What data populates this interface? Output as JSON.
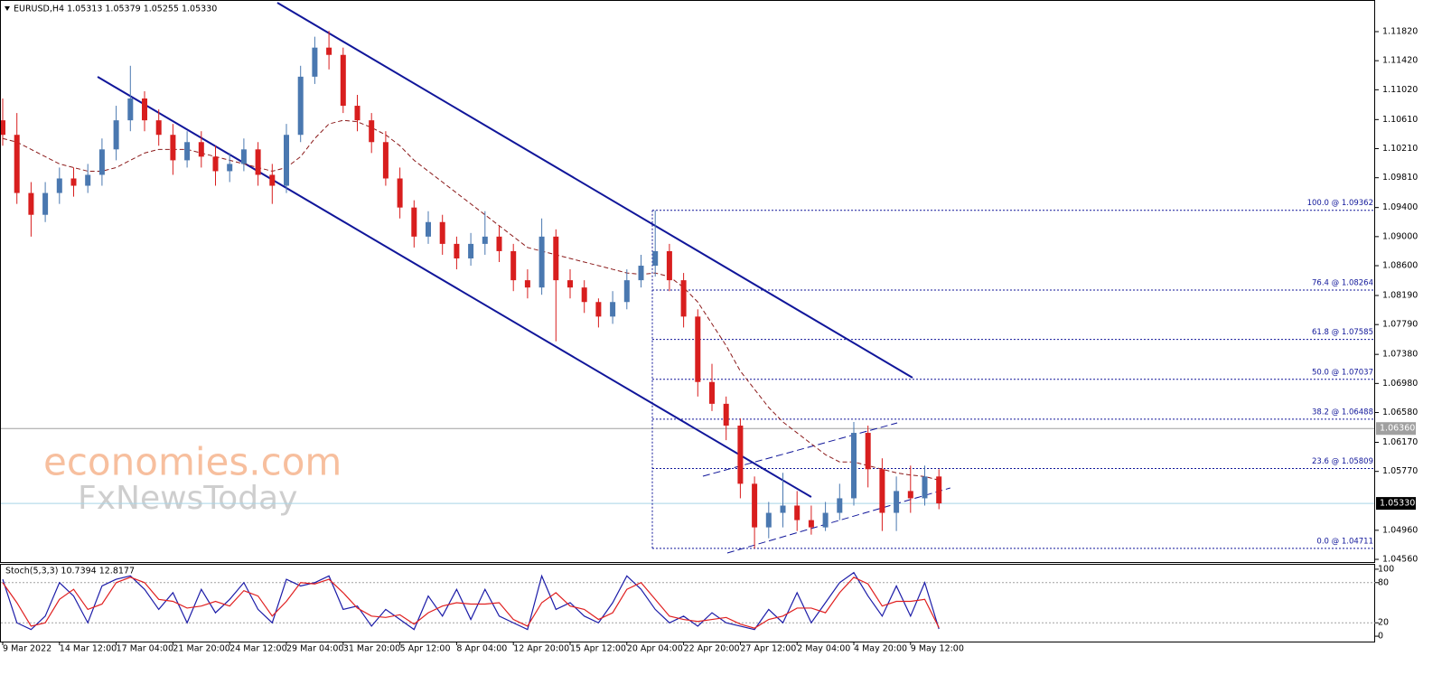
{
  "chart_data": [
    {
      "type": "candlestick",
      "symbol_info": "EURUSD,H4  1.05313 1.05379 1.05255 1.05330",
      "categories": [
        "9 Mar 2022",
        null,
        null,
        null,
        "14 Mar 12:00",
        null,
        null,
        null,
        "17 Mar 04:00",
        null,
        null,
        null,
        "21 Mar 20:00",
        null,
        null,
        null,
        "24 Mar 12:00",
        null,
        null,
        null,
        "29 Mar 04:00",
        null,
        null,
        null,
        "31 Mar 20:00",
        null,
        null,
        null,
        "5 Apr 12:00",
        null,
        null,
        null,
        "8 Apr 04:00",
        null,
        null,
        null,
        "12 Apr 20:00",
        null,
        null,
        null,
        "15 Apr 12:00",
        null,
        null,
        null,
        "20 Apr 04:00",
        null,
        null,
        null,
        "22 Apr 20:00",
        null,
        null,
        null,
        "27 Apr 12:00",
        null,
        null,
        null,
        "2 May 04:00",
        null,
        null,
        null,
        "4 May 20:00",
        null,
        null,
        null,
        "9 May 12:00",
        null,
        null
      ],
      "open": [
        1.106,
        1.104,
        1.096,
        1.093,
        1.096,
        1.098,
        1.097,
        1.0985,
        1.102,
        1.106,
        1.109,
        1.106,
        1.104,
        1.1005,
        1.103,
        1.101,
        1.099,
        1.1,
        1.102,
        1.0985,
        1.097,
        1.104,
        1.112,
        1.116,
        1.115,
        1.108,
        1.106,
        1.103,
        1.098,
        1.094,
        1.09,
        1.092,
        1.089,
        1.087,
        1.089,
        1.09,
        1.088,
        1.084,
        1.083,
        1.09,
        1.084,
        1.083,
        1.081,
        1.079,
        1.081,
        1.084,
        1.086,
        1.088,
        1.084,
        1.079,
        1.07,
        1.067,
        1.064,
        1.056,
        1.05,
        1.052,
        1.053,
        1.051,
        1.05,
        1.052,
        1.054,
        1.063,
        1.058,
        1.052,
        1.055,
        1.054,
        1.057
      ],
      "high": [
        1.109,
        1.107,
        1.0975,
        1.0975,
        1.0995,
        1.0995,
        1.1,
        1.1035,
        1.108,
        1.1135,
        1.11,
        1.1075,
        1.1055,
        1.1045,
        1.1045,
        1.1025,
        1.1015,
        1.1035,
        1.103,
        1.1,
        1.1055,
        1.1135,
        1.1175,
        1.1183,
        1.116,
        1.1095,
        1.107,
        1.1045,
        1.0995,
        1.095,
        1.0935,
        1.093,
        1.09,
        1.0905,
        1.0935,
        1.0915,
        1.089,
        1.0855,
        1.0925,
        1.091,
        1.0855,
        1.084,
        1.0815,
        1.0825,
        1.0855,
        1.0875,
        1.0936,
        1.089,
        1.085,
        1.08,
        1.0725,
        1.068,
        1.065,
        1.057,
        1.0535,
        1.0575,
        1.055,
        1.053,
        1.0535,
        1.056,
        1.0645,
        1.064,
        1.0595,
        1.057,
        1.0585,
        1.0585,
        1.058
      ],
      "low": [
        1.1025,
        1.0945,
        1.09,
        1.092,
        1.0945,
        1.0955,
        1.096,
        1.097,
        1.1005,
        1.1045,
        1.1045,
        1.1025,
        1.0985,
        1.0995,
        1.0995,
        1.097,
        1.0975,
        1.099,
        1.097,
        1.0945,
        1.096,
        1.103,
        1.111,
        1.113,
        1.107,
        1.1045,
        1.1015,
        1.097,
        1.0925,
        1.0885,
        1.089,
        1.0875,
        1.0855,
        1.086,
        1.0875,
        1.0865,
        1.0825,
        1.0815,
        1.082,
        1.0756,
        1.0815,
        1.0795,
        1.0775,
        1.078,
        1.08,
        1.083,
        1.0845,
        1.0825,
        1.0775,
        1.068,
        1.066,
        1.062,
        1.054,
        1.0471,
        1.0485,
        1.05,
        1.0495,
        1.049,
        1.0495,
        1.051,
        1.053,
        1.0555,
        1.0495,
        1.0495,
        1.052,
        1.053,
        1.0525
      ],
      "close": [
        1.104,
        1.096,
        1.093,
        1.096,
        1.098,
        1.097,
        1.0985,
        1.102,
        1.106,
        1.109,
        1.106,
        1.104,
        1.1005,
        1.103,
        1.101,
        1.099,
        1.1,
        1.102,
        1.0985,
        1.097,
        1.104,
        1.112,
        1.116,
        1.115,
        1.108,
        1.106,
        1.103,
        1.098,
        1.094,
        1.09,
        1.092,
        1.089,
        1.087,
        1.089,
        1.09,
        1.088,
        1.084,
        1.083,
        1.09,
        1.084,
        1.083,
        1.081,
        1.079,
        1.081,
        1.084,
        1.086,
        1.088,
        1.084,
        1.079,
        1.07,
        1.067,
        1.064,
        1.056,
        1.05,
        1.052,
        1.053,
        1.051,
        1.05,
        1.052,
        1.054,
        1.063,
        1.058,
        1.052,
        1.055,
        1.054,
        1.057,
        1.0533
      ],
      "up_color": "#4a78b0",
      "down_color": "#d81e1e",
      "moving_average": {
        "color": "#8b1a1a",
        "values": [
          1.1035,
          1.103,
          1.102,
          1.101,
          1.1,
          1.0995,
          1.099,
          1.099,
          1.0995,
          1.1005,
          1.1015,
          1.102,
          1.102,
          1.102,
          1.1015,
          1.101,
          1.1005,
          1.1,
          1.0995,
          1.099,
          1.0995,
          1.101,
          1.1035,
          1.1055,
          1.106,
          1.1058,
          1.105,
          1.104,
          1.1025,
          1.1005,
          1.099,
          1.0975,
          1.096,
          1.0945,
          1.093,
          1.0915,
          1.09,
          1.0885,
          1.088,
          1.0875,
          1.087,
          1.0865,
          1.086,
          1.0855,
          1.085,
          1.0848,
          1.085,
          1.0845,
          1.083,
          1.081,
          1.078,
          1.075,
          1.0715,
          1.069,
          1.0665,
          1.0645,
          1.063,
          1.0615,
          1.06,
          1.059,
          1.059,
          1.0585,
          1.058,
          1.0575,
          1.0572,
          1.057,
          1.0565
        ]
      },
      "ylim": [
        1.04523,
        1.12255
      ],
      "yticks": [
        {
          "value": 1.1182,
          "label": "1.11820"
        },
        {
          "value": 1.1142,
          "label": "1.11420"
        },
        {
          "value": 1.1102,
          "label": "1.11020"
        },
        {
          "value": 1.1061,
          "label": "1.10610"
        },
        {
          "value": 1.1021,
          "label": "1.10210"
        },
        {
          "value": 1.0981,
          "label": "1.09810"
        },
        {
          "value": 1.094,
          "label": "1.09400"
        },
        {
          "value": 1.09,
          "label": "1.09000"
        },
        {
          "value": 1.086,
          "label": "1.08600"
        },
        {
          "value": 1.0819,
          "label": "1.08190"
        },
        {
          "value": 1.0779,
          "label": "1.07790"
        },
        {
          "value": 1.0738,
          "label": "1.07380"
        },
        {
          "value": 1.0698,
          "label": "1.06980"
        },
        {
          "value": 1.0658,
          "label": "1.06580"
        },
        {
          "value": 1.0617,
          "label": "1.06170"
        },
        {
          "value": 1.0577,
          "label": "1.05770"
        },
        {
          "value": 1.0496,
          "label": "1.04960"
        },
        {
          "value": 1.0456,
          "label": "1.04560"
        }
      ],
      "fib_levels": [
        {
          "value": 1.09362,
          "label": "100.0 @ 1.09362"
        },
        {
          "value": 1.08264,
          "label": "76.4 @ 1.08264"
        },
        {
          "value": 1.07585,
          "label": "61.8 @ 1.07585"
        },
        {
          "value": 1.07037,
          "label": "50.0 @ 1.07037"
        },
        {
          "value": 1.06488,
          "label": "38.2 @ 1.06488"
        },
        {
          "value": 1.05809,
          "label": "23.6 @ 1.05809"
        },
        {
          "value": 1.04711,
          "label": "0.0 @ 1.04711"
        }
      ],
      "hlines": [
        {
          "value": 1.0636,
          "label": "1.06360",
          "color": "#a0a0a0"
        },
        {
          "value": 1.0533,
          "label": "1.05330",
          "color": "#a8d4e6"
        }
      ],
      "trendlines": [
        {
          "x": [
            19.36,
            64.14
          ],
          "y": [
            1.12218,
            1.07059
          ],
          "color": "#10169a",
          "dashed": false
        },
        {
          "x": [
            6.69,
            57.0
          ],
          "y": [
            1.11198,
            1.05418
          ],
          "color": "#10169a",
          "dashed": false
        },
        {
          "x": [
            51.08,
            66.8
          ],
          "y": [
            1.04647,
            1.05542
          ],
          "color": "#10169a",
          "dashed": true
        },
        {
          "x": [
            49.36,
            63.06
          ],
          "y": [
            1.05704,
            1.06437
          ],
          "color": "#10169a",
          "dashed": true
        }
      ],
      "watermark": [
        "economies.com",
        "FxNewsToday"
      ]
    },
    {
      "type": "line",
      "title": "Stoch(5,3,3) 10.7394 12.8177",
      "series": [
        {
          "name": "Main",
          "color": "#1c1ca8",
          "values": [
            85,
            20,
            10,
            30,
            80,
            60,
            20,
            75,
            85,
            90,
            70,
            40,
            65,
            20,
            70,
            35,
            55,
            80,
            40,
            20,
            85,
            75,
            80,
            90,
            40,
            45,
            15,
            40,
            25,
            10,
            60,
            30,
            70,
            25,
            70,
            30,
            20,
            10,
            90,
            40,
            50,
            30,
            20,
            50,
            90,
            70,
            40,
            20,
            30,
            15,
            35,
            20,
            15,
            10,
            40,
            20,
            65,
            20,
            50,
            80,
            95,
            60,
            30,
            75,
            30,
            80,
            10.7394
          ]
        },
        {
          "name": "Signal",
          "color": "#e02020",
          "values": [
            80,
            50,
            15,
            20,
            55,
            70,
            40,
            48,
            80,
            88,
            80,
            55,
            52,
            42,
            45,
            52,
            45,
            68,
            60,
            30,
            52,
            80,
            78,
            85,
            65,
            42,
            30,
            28,
            32,
            18,
            35,
            45,
            50,
            48,
            48,
            50,
            25,
            15,
            50,
            65,
            45,
            40,
            25,
            35,
            70,
            80,
            55,
            30,
            25,
            22,
            25,
            28,
            18,
            12,
            25,
            30,
            42,
            42,
            35,
            65,
            88,
            78,
            45,
            52,
            52,
            55,
            12.8177
          ]
        }
      ],
      "ylim": [
        -8,
        108
      ],
      "yticks": [
        100,
        80,
        20,
        0
      ],
      "levels": [
        80,
        20
      ]
    }
  ]
}
